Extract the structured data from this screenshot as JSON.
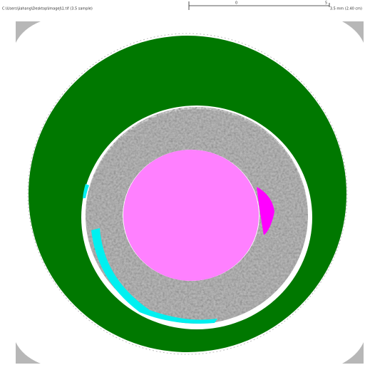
{
  "header": {
    "path": "C:\\Users\\jiahang\\Desktop\\ImageJ\\1.tif (3.5 sample)",
    "scale_labels": [
      "0",
      "5"
    ],
    "info": "3.5 mm (2.40 cm)"
  }
}
